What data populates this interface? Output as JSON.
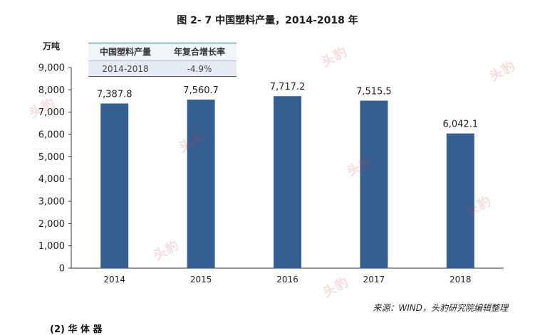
{
  "title": "图 2- 7  中国塑料产量，2014-2018 年",
  "unit_label": "万吨",
  "growth_table": {
    "headers": [
      "中国塑料产量",
      "年复合增长率"
    ],
    "row": [
      "2014-2018",
      "-4.9%"
    ]
  },
  "source_note": "来源：WIND，头豹研究院编辑整理",
  "bottom_fragment": "(2)    华 体 器",
  "watermark_text": "头豹",
  "colors": {
    "bar": "#365f91",
    "axis": "#333333",
    "watermark": "#d63c3c"
  },
  "chart_data": {
    "type": "bar",
    "title": "图 2- 7  中国塑料产量，2014-2018 年",
    "ylabel": "万吨",
    "xlabel": "",
    "categories": [
      "2014",
      "2015",
      "2016",
      "2017",
      "2018"
    ],
    "values": [
      7387.8,
      7560.7,
      7717.2,
      7515.5,
      6042.1
    ],
    "value_labels": [
      "7,387.8",
      "7,560.7",
      "7,717.2",
      "7,515.5",
      "6,042.1"
    ],
    "ylim": [
      0,
      9000
    ],
    "yticks": [
      0,
      1000,
      2000,
      3000,
      4000,
      5000,
      6000,
      7000,
      8000,
      9000
    ],
    "ytick_labels": [
      "0",
      "1,000",
      "2,000",
      "3,000",
      "4,000",
      "5,000",
      "6,000",
      "7,000",
      "8,000",
      "9,000"
    ],
    "grid": false,
    "legend": "none"
  }
}
